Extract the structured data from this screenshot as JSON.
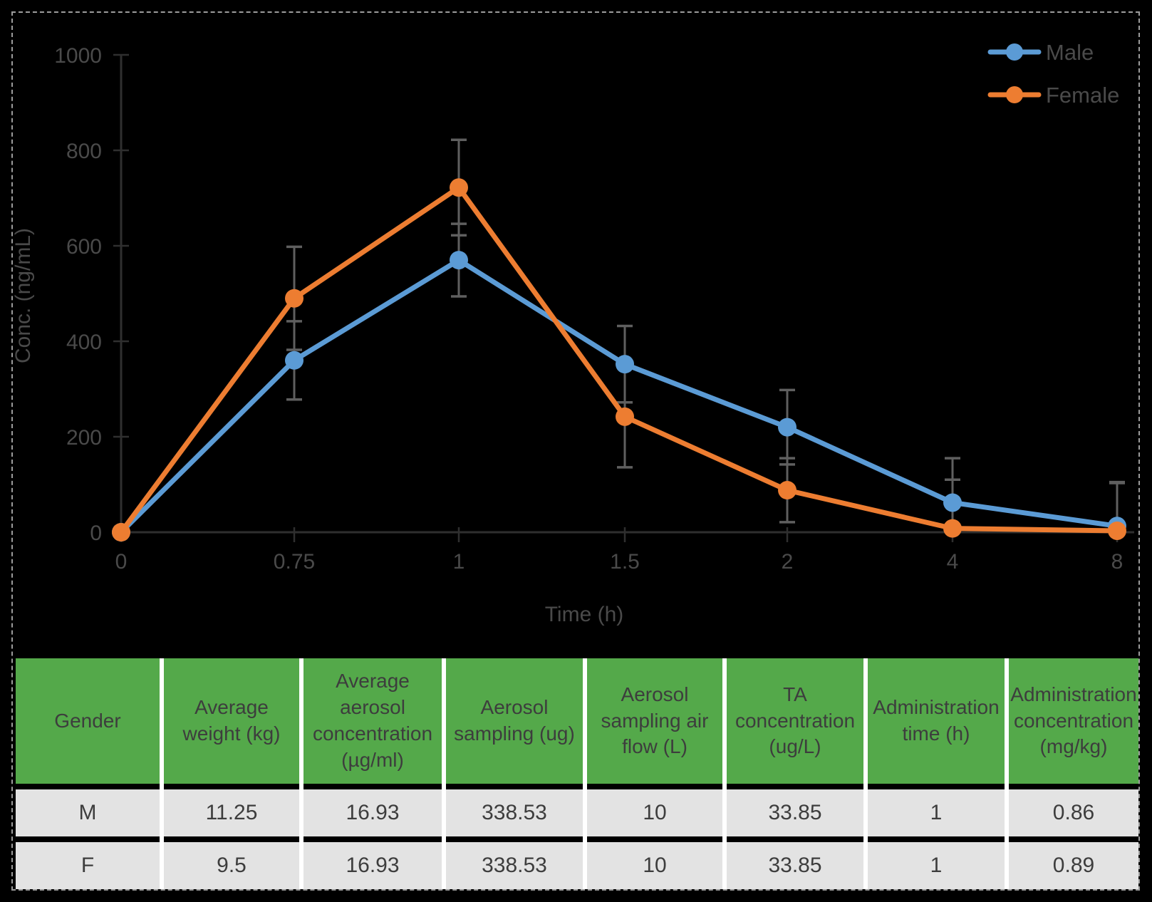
{
  "chart_data": {
    "type": "line",
    "title": "",
    "xlabel": "Time (h)",
    "ylabel": "Conc. (ng/mL)",
    "categories": [
      "0",
      "0.75",
      "1",
      "1.5",
      "2",
      "4",
      "8"
    ],
    "y_ticks": [
      0,
      200,
      400,
      600,
      800,
      1000
    ],
    "ylim": [
      0,
      1000
    ],
    "grid": false,
    "legend_position": "top-right",
    "marker": "circle",
    "series": [
      {
        "name": "Male",
        "color": "#5B9BD5",
        "values": [
          0,
          360,
          570,
          352,
          220,
          62,
          13
        ],
        "errors": [
          0,
          82,
          76,
          80,
          78,
          93,
          92
        ]
      },
      {
        "name": "Female",
        "color": "#ED7D31",
        "values": [
          0,
          490,
          722,
          242,
          88,
          8,
          3
        ],
        "errors": [
          0,
          108,
          100,
          106,
          67,
          102,
          100
        ]
      }
    ]
  },
  "table": {
    "columns": [
      "Gender",
      "Average weight (kg)",
      "Average aerosol concentration (µg/ml)",
      "Aerosol sampling (ug)",
      "Aerosol sampling air flow (L)",
      "TA concentration (ug/L)",
      "Administration time (h)",
      "Administration concentration (mg/kg)"
    ],
    "rows": [
      [
        "M",
        "11.25",
        "16.93",
        "338.53",
        "10",
        "33.85",
        "1",
        "0.86"
      ],
      [
        "F",
        "9.5",
        "16.93",
        "338.53",
        "10",
        "33.85",
        "1",
        "0.89"
      ]
    ]
  },
  "colors": {
    "background": "#000000",
    "dashed_border": "#9c9c9c",
    "axis_line": "#2f2f2f",
    "axis_text": "#4a4a4a",
    "error_bar": "#5f5f5f",
    "table_header_bg": "#54A94A",
    "table_row_bg": "#E3E3E3",
    "table_text": "#3d3d3d",
    "table_separator": "#ffffff"
  }
}
